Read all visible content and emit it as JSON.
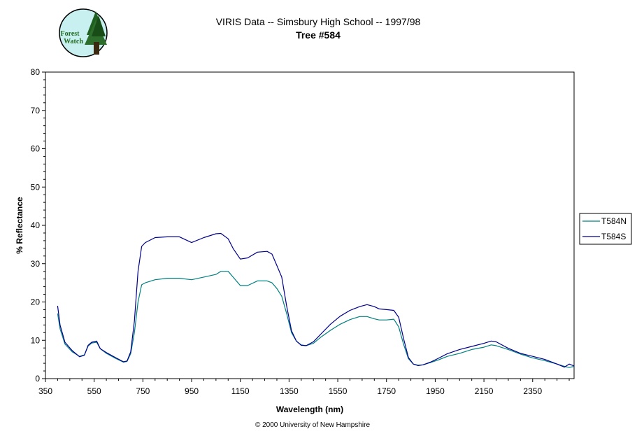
{
  "logo": {
    "text_line1": "Forest",
    "text_line2": "Watch"
  },
  "chart_data": {
    "type": "line",
    "title": "VIRIS Data -- Simsbury High School -- 1997/98",
    "subtitle": "Tree #584",
    "xlabel": "Wavelength (nm)",
    "ylabel": "% Reflectance",
    "xlim": [
      350,
      2520
    ],
    "ylim": [
      0,
      80
    ],
    "xticks": [
      350,
      550,
      750,
      950,
      1150,
      1350,
      1550,
      1750,
      1950,
      2150,
      2350
    ],
    "yticks": [
      0,
      10,
      20,
      30,
      40,
      50,
      60,
      70,
      80
    ],
    "grid": false,
    "legend_position": "right",
    "copyright": "© 2000 University of New Hampshire",
    "series": [
      {
        "name": "T584N",
        "color": "#008080",
        "x": [
          400,
          410,
          430,
          460,
          490,
          510,
          525,
          540,
          560,
          575,
          600,
          640,
          670,
          685,
          700,
          715,
          730,
          745,
          760,
          800,
          850,
          900,
          950,
          1000,
          1050,
          1070,
          1100,
          1120,
          1150,
          1180,
          1220,
          1260,
          1280,
          1300,
          1320,
          1340,
          1360,
          1380,
          1400,
          1420,
          1450,
          1480,
          1520,
          1560,
          1600,
          1640,
          1670,
          1700,
          1720,
          1750,
          1780,
          1800,
          1820,
          1840,
          1860,
          1880,
          1900,
          1930,
          1960,
          2000,
          2050,
          2100,
          2150,
          2180,
          2200,
          2250,
          2300,
          2350,
          2400,
          2450,
          2480,
          2500,
          2520
        ],
        "y": [
          17,
          13,
          9,
          7,
          5.8,
          6.2,
          8.5,
          9.3,
          9.5,
          7.8,
          6.6,
          5.2,
          4.3,
          4.5,
          6.5,
          12,
          20,
          24.5,
          25,
          25.8,
          26.2,
          26.2,
          25.8,
          26.5,
          27.2,
          28,
          28,
          26.5,
          24.3,
          24.3,
          25.5,
          25.5,
          25,
          23.5,
          21.5,
          17,
          12,
          9.8,
          8.8,
          8.6,
          9.2,
          10.8,
          12.6,
          14.2,
          15.4,
          16.2,
          16.2,
          15.6,
          15.3,
          15.3,
          15.5,
          13.5,
          9,
          5.2,
          3.8,
          3.5,
          3.6,
          4.2,
          4.8,
          5.8,
          6.6,
          7.6,
          8.2,
          8.8,
          8.6,
          7.6,
          6.4,
          5.4,
          4.7,
          3.8,
          3.2,
          2.9,
          3.2
        ]
      },
      {
        "name": "T584S",
        "color": "#00008B",
        "x": [
          400,
          410,
          430,
          460,
          490,
          510,
          525,
          540,
          560,
          575,
          600,
          640,
          670,
          685,
          700,
          715,
          730,
          745,
          760,
          800,
          850,
          900,
          950,
          1000,
          1050,
          1070,
          1100,
          1120,
          1150,
          1180,
          1220,
          1260,
          1280,
          1300,
          1320,
          1340,
          1360,
          1380,
          1400,
          1420,
          1450,
          1480,
          1520,
          1560,
          1600,
          1640,
          1670,
          1700,
          1720,
          1750,
          1780,
          1800,
          1820,
          1840,
          1860,
          1880,
          1900,
          1930,
          1960,
          2000,
          2050,
          2100,
          2150,
          2180,
          2200,
          2250,
          2300,
          2350,
          2400,
          2450,
          2480,
          2500,
          2520
        ],
        "y": [
          19,
          14,
          9.5,
          7.3,
          5.7,
          6.1,
          8.7,
          9.5,
          9.8,
          7.8,
          6.8,
          5.4,
          4.4,
          4.6,
          7,
          15,
          28,
          34.5,
          35.5,
          36.8,
          37,
          37,
          35.5,
          36.8,
          37.8,
          37.9,
          36.5,
          34,
          31.2,
          31.5,
          33,
          33.2,
          32.5,
          29.5,
          26.5,
          19,
          12.5,
          9.8,
          8.7,
          8.6,
          9.6,
          11.6,
          14.2,
          16.3,
          17.8,
          18.8,
          19.3,
          18.8,
          18.2,
          18,
          17.8,
          16,
          10.5,
          5.5,
          3.8,
          3.4,
          3.6,
          4.3,
          5.2,
          6.5,
          7.6,
          8.4,
          9.2,
          9.8,
          9.6,
          7.9,
          6.6,
          5.8,
          5,
          3.8,
          3,
          3.8,
          3.3
        ]
      }
    ]
  }
}
